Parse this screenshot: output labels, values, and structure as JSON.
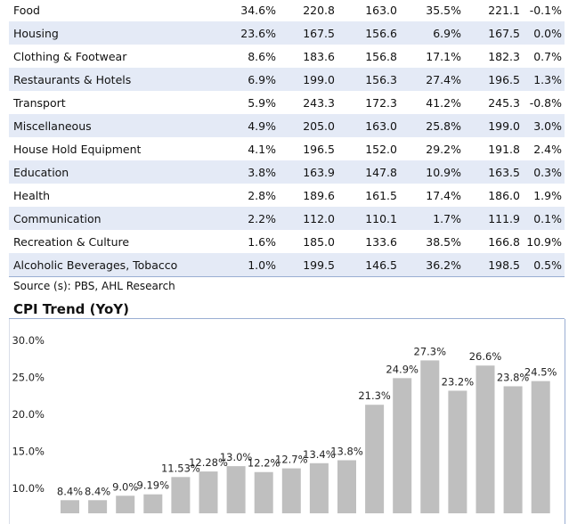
{
  "table": {
    "rows": [
      {
        "name": "Food",
        "weight": "34.6%",
        "v1": "220.8",
        "v2": "163.0",
        "yoy": "35.5%",
        "v3": "221.1",
        "mom": "-0.1%"
      },
      {
        "name": "Housing",
        "weight": "23.6%",
        "v1": "167.5",
        "v2": "156.6",
        "yoy": "6.9%",
        "v3": "167.5",
        "mom": "0.0%"
      },
      {
        "name": "Clothing & Footwear",
        "weight": "8.6%",
        "v1": "183.6",
        "v2": "156.8",
        "yoy": "17.1%",
        "v3": "182.3",
        "mom": "0.7%"
      },
      {
        "name": "Restaurants & Hotels",
        "weight": "6.9%",
        "v1": "199.0",
        "v2": "156.3",
        "yoy": "27.4%",
        "v3": "196.5",
        "mom": "1.3%"
      },
      {
        "name": "Transport",
        "weight": "5.9%",
        "v1": "243.3",
        "v2": "172.3",
        "yoy": "41.2%",
        "v3": "245.3",
        "mom": "-0.8%"
      },
      {
        "name": "Miscellaneous",
        "weight": "4.9%",
        "v1": "205.0",
        "v2": "163.0",
        "yoy": "25.8%",
        "v3": "199.0",
        "mom": "3.0%"
      },
      {
        "name": "House Hold Equipment",
        "weight": "4.1%",
        "v1": "196.5",
        "v2": "152.0",
        "yoy": "29.2%",
        "v3": "191.8",
        "mom": "2.4%"
      },
      {
        "name": "Education",
        "weight": "3.8%",
        "v1": "163.9",
        "v2": "147.8",
        "yoy": "10.9%",
        "v3": "163.5",
        "mom": "0.3%"
      },
      {
        "name": "Health",
        "weight": "2.8%",
        "v1": "189.6",
        "v2": "161.5",
        "yoy": "17.4%",
        "v3": "186.0",
        "mom": "1.9%"
      },
      {
        "name": "Communication",
        "weight": "2.2%",
        "v1": "112.0",
        "v2": "110.1",
        "yoy": "1.7%",
        "v3": "111.9",
        "mom": "0.1%"
      },
      {
        "name": "Recreation & Culture",
        "weight": "1.6%",
        "v1": "185.0",
        "v2": "133.6",
        "yoy": "38.5%",
        "v3": "166.8",
        "mom": "10.9%"
      },
      {
        "name": "Alcoholic Beverages, Tobacco",
        "weight": "1.0%",
        "v1": "199.5",
        "v2": "146.5",
        "yoy": "36.2%",
        "v3": "198.5",
        "mom": "0.5%"
      }
    ]
  },
  "source_note": "Source (s): PBS, AHL Research",
  "chart_title": "CPI Trend (YoY)",
  "colors": {
    "bar": "#bfbfbf",
    "alt_row": "#e4eaf6",
    "rule": "#9aaed3"
  },
  "chart_data": {
    "type": "bar",
    "title": "CPI Trend (YoY)",
    "values": [
      8.4,
      8.4,
      9.0,
      9.19,
      11.53,
      12.28,
      13.0,
      12.2,
      12.7,
      13.4,
      13.8,
      21.3,
      24.9,
      27.3,
      23.2,
      26.6,
      23.8,
      24.5
    ],
    "data_labels": [
      "8.4%",
      "8.4%",
      "9.0%",
      "9.19%",
      "11.53%",
      "12.28%",
      "13.0%",
      "12.2%",
      "12.7%",
      "13.4%",
      "13.8%",
      "21.3%",
      "24.9%",
      "27.3%",
      "23.2%",
      "26.6%",
      "23.8%",
      "24.5%"
    ],
    "y_ticks": [
      "10.0%",
      "15.0%",
      "20.0%",
      "25.0%",
      "30.0%"
    ],
    "y_tick_values": [
      10,
      15,
      20,
      25,
      30
    ],
    "ylim": [
      5,
      30
    ],
    "grid": false
  }
}
